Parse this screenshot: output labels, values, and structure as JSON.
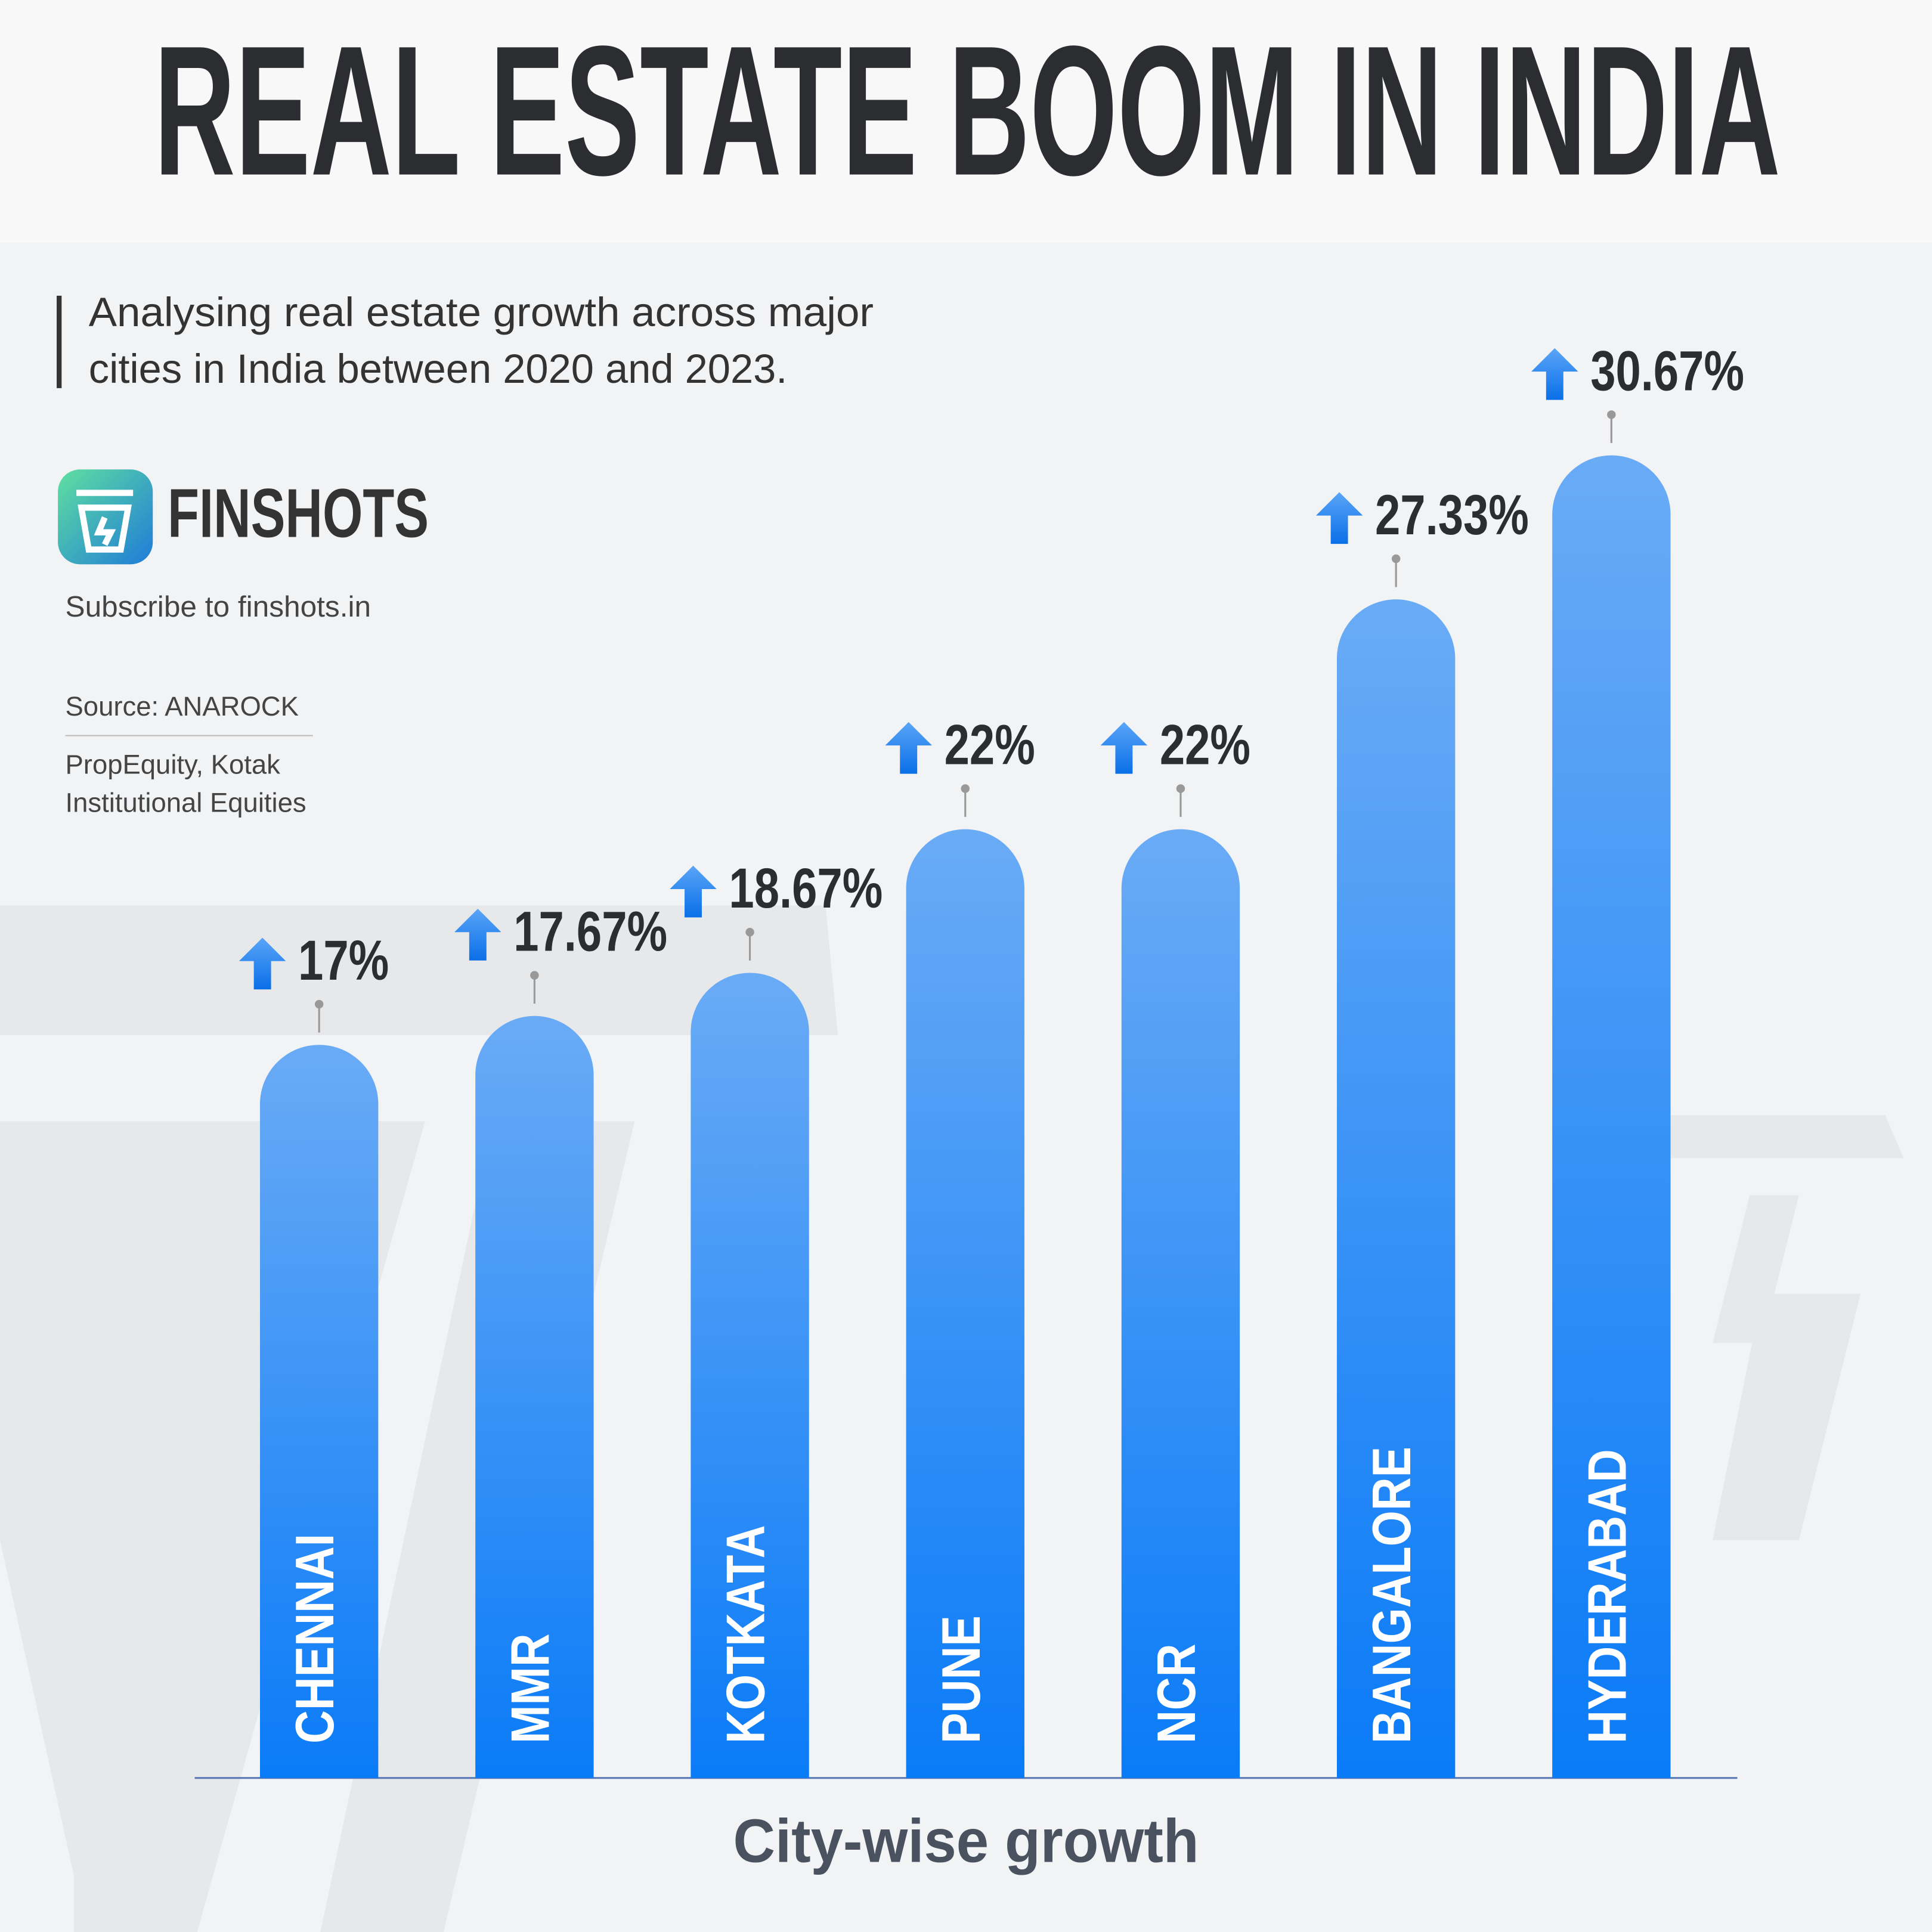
{
  "chart_data": {
    "type": "bar",
    "title": "REAL ESTATE BOOM IN INDIA",
    "subtitle": [
      "Analysing real estate growth across major",
      "cities in India between 2020 and 2023."
    ],
    "brand": "FINSHOTS",
    "subscribe": "Subscribe to finshots.in",
    "source": "Source: ANAROCK",
    "source_more": [
      "PropEquity, Kotak",
      "Institutional Equities"
    ],
    "categories": [
      "CHENNAI",
      "MMR",
      "KOTKATA",
      "PUNE",
      "NCR",
      "BANGALORE",
      "HYDERABAD"
    ],
    "values": [
      17,
      17.67,
      18.67,
      22,
      22,
      27.33,
      30.67
    ],
    "value_labels": [
      "17%",
      "17.67%",
      "18.67%",
      "22%",
      "22%",
      "27.33%",
      "30.67%"
    ],
    "color": "#2a8df8",
    "x_label": "City-wise growth"
  }
}
